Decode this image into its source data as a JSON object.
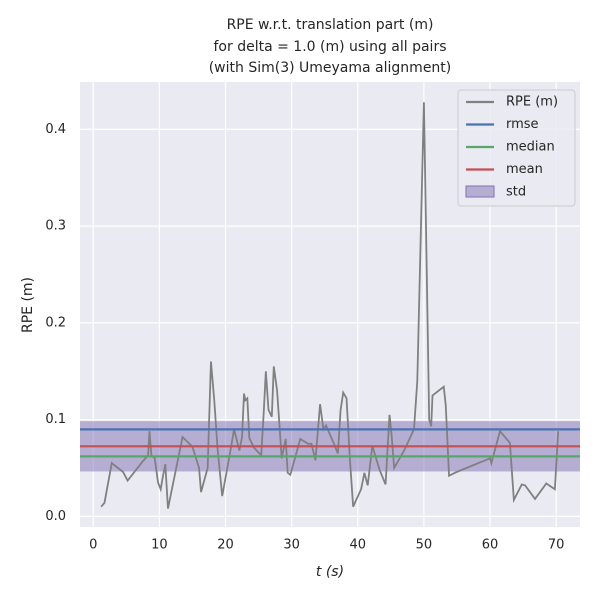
{
  "chart_data": {
    "type": "line",
    "title": [
      "RPE w.r.t. translation part (m)",
      "for delta = 1.0 (m) using all pairs",
      "(with Sim(3) Umeyama alignment)"
    ],
    "xlabel": "t (s)",
    "ylabel": "RPE (m)",
    "xlim": [
      -2,
      73.6
    ],
    "ylim": [
      -0.011,
      0.449
    ],
    "xticks": [
      0,
      10,
      20,
      30,
      40,
      50,
      60,
      70
    ],
    "yticks": [
      {
        "value": 0,
        "label": "0.0"
      },
      {
        "value": 0.1,
        "label": "0.1"
      },
      {
        "value": 0.2,
        "label": "0.2"
      },
      {
        "value": 0.3,
        "label": "0.3"
      },
      {
        "value": 0.4,
        "label": "0.4"
      }
    ],
    "grid": true,
    "legend": "upper right",
    "series": [
      {
        "name": "RPE (m)",
        "color": "#808080",
        "x": [
          1.2,
          1.7,
          2.8,
          4.5,
          5.2,
          7.5,
          8.3,
          8.5,
          8.8,
          9.3,
          9.8,
          10.2,
          10.5,
          10.9,
          11.3,
          13.5,
          15,
          16,
          16.3,
          17.3,
          17.8,
          18.3,
          18.8,
          19.5,
          20.8,
          21.3,
          22.1,
          22.5,
          22.8,
          23,
          23.3,
          23.6,
          24.3,
          25.4,
          25.8,
          26.1,
          26.5,
          27,
          27.3,
          27.8,
          28.5,
          29.1,
          29.4,
          29.8,
          30.5,
          31.3,
          32.5,
          33,
          33.6,
          34.3,
          34.8,
          35.2,
          36.4,
          37,
          37.4,
          37.8,
          38.3,
          38.8,
          39.3,
          40.5,
          41,
          41.5,
          42.2,
          43.3,
          44.2,
          44.8,
          45.1,
          45.5,
          47,
          48.5,
          49,
          50,
          50.8,
          51.1,
          51.3,
          53,
          53.3,
          53.8,
          55,
          60,
          60.2,
          61.5,
          63,
          63.6,
          64.8,
          65.3,
          66.8,
          68.5,
          69.8,
          70.3
        ],
        "values": [
          0.01,
          0.014,
          0.055,
          0.046,
          0.037,
          0.057,
          0.063,
          0.088,
          0.063,
          0.06,
          0.035,
          0.028,
          0.04,
          0.054,
          0.008,
          0.082,
          0.072,
          0.05,
          0.025,
          0.05,
          0.16,
          0.12,
          0.07,
          0.021,
          0.07,
          0.09,
          0.068,
          0.082,
          0.127,
          0.12,
          0.122,
          0.081,
          0.071,
          0.063,
          0.11,
          0.15,
          0.11,
          0.103,
          0.155,
          0.13,
          0.06,
          0.08,
          0.045,
          0.043,
          0.06,
          0.08,
          0.075,
          0.075,
          0.058,
          0.116,
          0.09,
          0.094,
          0.075,
          0.065,
          0.11,
          0.128,
          0.122,
          0.06,
          0.01,
          0.028,
          0.045,
          0.032,
          0.073,
          0.048,
          0.033,
          0.105,
          0.085,
          0.05,
          0.068,
          0.09,
          0.14,
          0.428,
          0.1,
          0.093,
          0.125,
          0.134,
          0.115,
          0.042,
          0.046,
          0.06,
          0.055,
          0.088,
          0.076,
          0.017,
          0.033,
          0.032,
          0.018,
          0.034,
          0.028,
          0.088
        ]
      }
    ],
    "stats": [
      {
        "name": "rmse",
        "color": "#4c72b0",
        "value": 0.0899
      },
      {
        "name": "median",
        "color": "#55a868",
        "value": 0.062
      },
      {
        "name": "mean",
        "color": "#c44e52",
        "value": 0.0724
      },
      {
        "name": "std",
        "color": "#8172b2",
        "value": 0.026
      }
    ]
  }
}
